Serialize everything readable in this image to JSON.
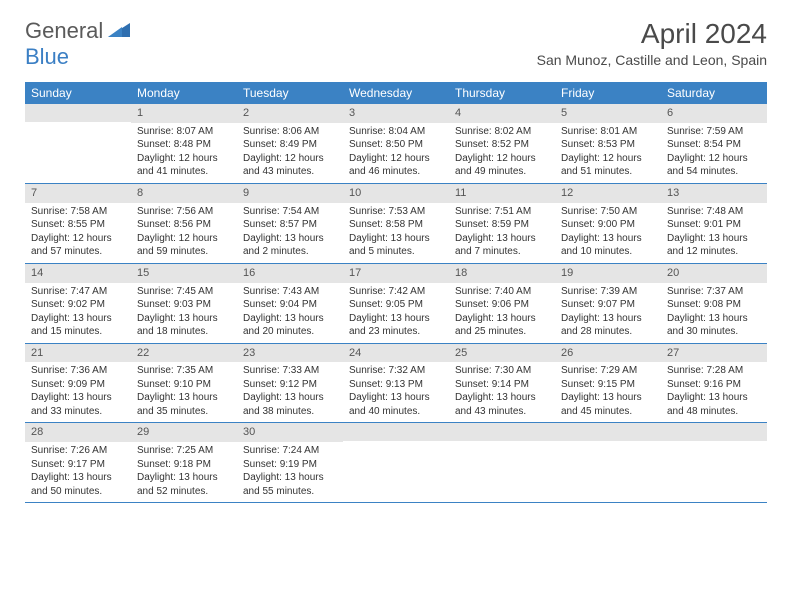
{
  "logo": {
    "text1": "General",
    "text2": "Blue"
  },
  "title": "April 2024",
  "location": "San Munoz, Castille and Leon, Spain",
  "colors": {
    "header_bg": "#3b82c4",
    "header_text": "#ffffff",
    "daynum_bg": "#e5e5e5",
    "border": "#3b82c4",
    "logo_gray": "#5a5a5a",
    "logo_blue": "#3b7fc4",
    "body_text": "#333333"
  },
  "day_headers": [
    "Sunday",
    "Monday",
    "Tuesday",
    "Wednesday",
    "Thursday",
    "Friday",
    "Saturday"
  ],
  "weeks": [
    [
      {
        "n": "",
        "sr": "",
        "ss": "",
        "dl": ""
      },
      {
        "n": "1",
        "sr": "Sunrise: 8:07 AM",
        "ss": "Sunset: 8:48 PM",
        "dl": "Daylight: 12 hours and 41 minutes."
      },
      {
        "n": "2",
        "sr": "Sunrise: 8:06 AM",
        "ss": "Sunset: 8:49 PM",
        "dl": "Daylight: 12 hours and 43 minutes."
      },
      {
        "n": "3",
        "sr": "Sunrise: 8:04 AM",
        "ss": "Sunset: 8:50 PM",
        "dl": "Daylight: 12 hours and 46 minutes."
      },
      {
        "n": "4",
        "sr": "Sunrise: 8:02 AM",
        "ss": "Sunset: 8:52 PM",
        "dl": "Daylight: 12 hours and 49 minutes."
      },
      {
        "n": "5",
        "sr": "Sunrise: 8:01 AM",
        "ss": "Sunset: 8:53 PM",
        "dl": "Daylight: 12 hours and 51 minutes."
      },
      {
        "n": "6",
        "sr": "Sunrise: 7:59 AM",
        "ss": "Sunset: 8:54 PM",
        "dl": "Daylight: 12 hours and 54 minutes."
      }
    ],
    [
      {
        "n": "7",
        "sr": "Sunrise: 7:58 AM",
        "ss": "Sunset: 8:55 PM",
        "dl": "Daylight: 12 hours and 57 minutes."
      },
      {
        "n": "8",
        "sr": "Sunrise: 7:56 AM",
        "ss": "Sunset: 8:56 PM",
        "dl": "Daylight: 12 hours and 59 minutes."
      },
      {
        "n": "9",
        "sr": "Sunrise: 7:54 AM",
        "ss": "Sunset: 8:57 PM",
        "dl": "Daylight: 13 hours and 2 minutes."
      },
      {
        "n": "10",
        "sr": "Sunrise: 7:53 AM",
        "ss": "Sunset: 8:58 PM",
        "dl": "Daylight: 13 hours and 5 minutes."
      },
      {
        "n": "11",
        "sr": "Sunrise: 7:51 AM",
        "ss": "Sunset: 8:59 PM",
        "dl": "Daylight: 13 hours and 7 minutes."
      },
      {
        "n": "12",
        "sr": "Sunrise: 7:50 AM",
        "ss": "Sunset: 9:00 PM",
        "dl": "Daylight: 13 hours and 10 minutes."
      },
      {
        "n": "13",
        "sr": "Sunrise: 7:48 AM",
        "ss": "Sunset: 9:01 PM",
        "dl": "Daylight: 13 hours and 12 minutes."
      }
    ],
    [
      {
        "n": "14",
        "sr": "Sunrise: 7:47 AM",
        "ss": "Sunset: 9:02 PM",
        "dl": "Daylight: 13 hours and 15 minutes."
      },
      {
        "n": "15",
        "sr": "Sunrise: 7:45 AM",
        "ss": "Sunset: 9:03 PM",
        "dl": "Daylight: 13 hours and 18 minutes."
      },
      {
        "n": "16",
        "sr": "Sunrise: 7:43 AM",
        "ss": "Sunset: 9:04 PM",
        "dl": "Daylight: 13 hours and 20 minutes."
      },
      {
        "n": "17",
        "sr": "Sunrise: 7:42 AM",
        "ss": "Sunset: 9:05 PM",
        "dl": "Daylight: 13 hours and 23 minutes."
      },
      {
        "n": "18",
        "sr": "Sunrise: 7:40 AM",
        "ss": "Sunset: 9:06 PM",
        "dl": "Daylight: 13 hours and 25 minutes."
      },
      {
        "n": "19",
        "sr": "Sunrise: 7:39 AM",
        "ss": "Sunset: 9:07 PM",
        "dl": "Daylight: 13 hours and 28 minutes."
      },
      {
        "n": "20",
        "sr": "Sunrise: 7:37 AM",
        "ss": "Sunset: 9:08 PM",
        "dl": "Daylight: 13 hours and 30 minutes."
      }
    ],
    [
      {
        "n": "21",
        "sr": "Sunrise: 7:36 AM",
        "ss": "Sunset: 9:09 PM",
        "dl": "Daylight: 13 hours and 33 minutes."
      },
      {
        "n": "22",
        "sr": "Sunrise: 7:35 AM",
        "ss": "Sunset: 9:10 PM",
        "dl": "Daylight: 13 hours and 35 minutes."
      },
      {
        "n": "23",
        "sr": "Sunrise: 7:33 AM",
        "ss": "Sunset: 9:12 PM",
        "dl": "Daylight: 13 hours and 38 minutes."
      },
      {
        "n": "24",
        "sr": "Sunrise: 7:32 AM",
        "ss": "Sunset: 9:13 PM",
        "dl": "Daylight: 13 hours and 40 minutes."
      },
      {
        "n": "25",
        "sr": "Sunrise: 7:30 AM",
        "ss": "Sunset: 9:14 PM",
        "dl": "Daylight: 13 hours and 43 minutes."
      },
      {
        "n": "26",
        "sr": "Sunrise: 7:29 AM",
        "ss": "Sunset: 9:15 PM",
        "dl": "Daylight: 13 hours and 45 minutes."
      },
      {
        "n": "27",
        "sr": "Sunrise: 7:28 AM",
        "ss": "Sunset: 9:16 PM",
        "dl": "Daylight: 13 hours and 48 minutes."
      }
    ],
    [
      {
        "n": "28",
        "sr": "Sunrise: 7:26 AM",
        "ss": "Sunset: 9:17 PM",
        "dl": "Daylight: 13 hours and 50 minutes."
      },
      {
        "n": "29",
        "sr": "Sunrise: 7:25 AM",
        "ss": "Sunset: 9:18 PM",
        "dl": "Daylight: 13 hours and 52 minutes."
      },
      {
        "n": "30",
        "sr": "Sunrise: 7:24 AM",
        "ss": "Sunset: 9:19 PM",
        "dl": "Daylight: 13 hours and 55 minutes."
      },
      {
        "n": "",
        "sr": "",
        "ss": "",
        "dl": ""
      },
      {
        "n": "",
        "sr": "",
        "ss": "",
        "dl": ""
      },
      {
        "n": "",
        "sr": "",
        "ss": "",
        "dl": ""
      },
      {
        "n": "",
        "sr": "",
        "ss": "",
        "dl": ""
      }
    ]
  ]
}
